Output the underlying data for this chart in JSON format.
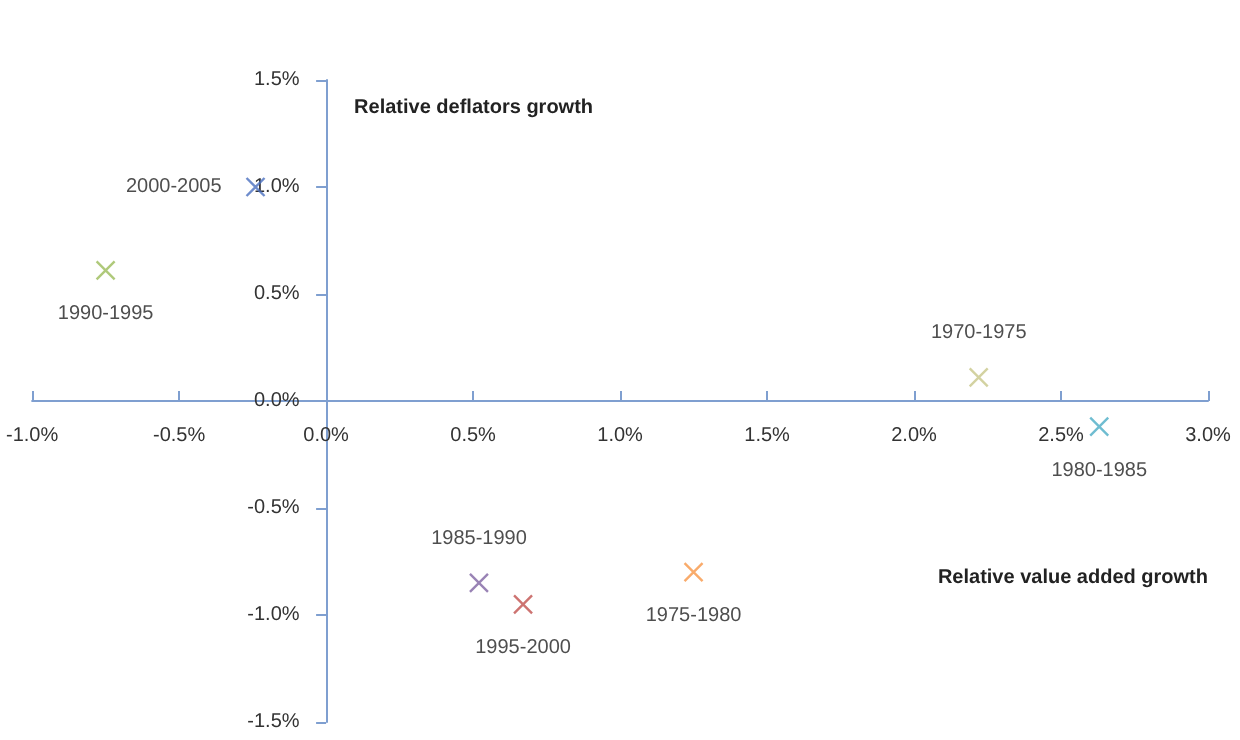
{
  "chart_data": {
    "type": "scatter",
    "xlabel": "Relative value added growth",
    "ylabel": "Relative deflators growth",
    "marker": "cross",
    "grid": false,
    "xlim": [
      -1.0,
      3.0
    ],
    "xticks": [
      {
        "value": -1.0,
        "label": "-1.0%"
      },
      {
        "value": -0.5,
        "label": "-0.5%"
      },
      {
        "value": 0,
        "label": "0.0%"
      },
      {
        "value": 0.5,
        "label": "0.5%"
      },
      {
        "value": 1.0,
        "label": "1.0%"
      },
      {
        "value": 1.5,
        "label": "1.5%"
      },
      {
        "value": 2.0,
        "label": "2.0%"
      },
      {
        "value": 2.5,
        "label": "2.5%"
      },
      {
        "value": 3.0,
        "label": "3.0%"
      }
    ],
    "ylim": [
      -1.5,
      1.5
    ],
    "yticks": [
      {
        "value": -1.5,
        "label": "-1.5%"
      },
      {
        "value": -1.0,
        "label": "-1.0%"
      },
      {
        "value": -0.5,
        "label": "-0.5%"
      },
      {
        "value": 0,
        "label": "0.0%"
      },
      {
        "value": 0.5,
        "label": "0.5%"
      },
      {
        "value": 1.0,
        "label": "1.0%"
      },
      {
        "value": 1.5,
        "label": "1.5%"
      }
    ],
    "series": [
      {
        "name": "2000-2005",
        "color": "#4a6fbf",
        "x": [
          -0.24
        ],
        "values": [
          1.0
        ]
      },
      {
        "name": "1990-1995",
        "color": "#9bbb59",
        "x": [
          -0.75
        ],
        "values": [
          0.61
        ]
      },
      {
        "name": "1970-1975",
        "color": "#c8c78a",
        "x": [
          2.22
        ],
        "values": [
          0.11
        ]
      },
      {
        "name": "1980-1985",
        "color": "#4bacc6",
        "x": [
          2.63
        ],
        "values": [
          -0.12
        ]
      },
      {
        "name": "1985-1990",
        "color": "#8064a2",
        "x": [
          0.52
        ],
        "values": [
          -0.85
        ]
      },
      {
        "name": "1995-2000",
        "color": "#c0504d",
        "x": [
          0.67
        ],
        "values": [
          -0.95
        ]
      },
      {
        "name": "1975-1980",
        "color": "#f79646",
        "x": [
          1.25
        ],
        "values": [
          -0.8
        ]
      }
    ]
  }
}
